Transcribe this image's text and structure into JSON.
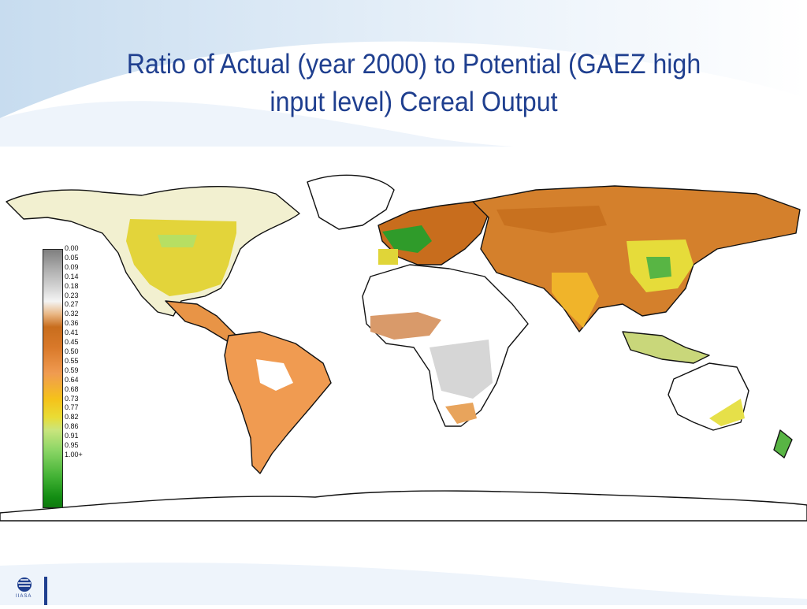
{
  "title": {
    "line1": "Ratio of Actual (year 2000) to Potential (GAEZ high",
    "line2": "input level) Cereal Output"
  },
  "legend": {
    "labels": [
      "0.00",
      "0.05",
      "0.09",
      "0.14",
      "0.18",
      "0.23",
      "0.27",
      "0.32",
      "0.36",
      "0.41",
      "0.45",
      "0.50",
      "0.55",
      "0.59",
      "0.64",
      "0.68",
      "0.73",
      "0.77",
      "0.82",
      "0.86",
      "0.91",
      "0.95",
      "1.00+"
    ],
    "colors": [
      "#7f7f7f",
      "#b0b0b0",
      "#dcdcdc",
      "#f4f4f4",
      "#e9b784",
      "#c86d1d",
      "#d9792a",
      "#f09b51",
      "#f5c21a",
      "#e9dc35",
      "#8ad565",
      "#43b235",
      "#0f7a0f"
    ]
  },
  "logo": {
    "text": "IIASA"
  }
}
